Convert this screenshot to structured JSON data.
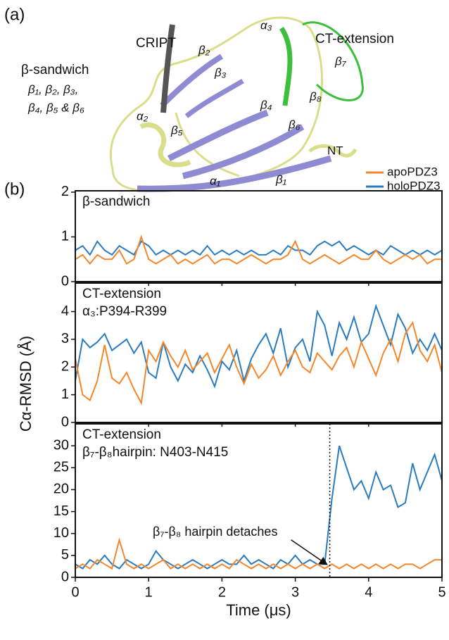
{
  "structure": {
    "panel_label": "(a)",
    "labels": [
      {
        "text": "CRIPT",
        "color": "#222222"
      },
      {
        "text": "β-sandwich",
        "color": "#8a84cc"
      },
      {
        "text": "β₁, β₂, β₃,",
        "color": "#222222"
      },
      {
        "text": "β₄, β₅ & β₆",
        "color": "#222222"
      },
      {
        "text": "α₂",
        "color": "#222222"
      },
      {
        "text": "β₂",
        "color": "#222222"
      },
      {
        "text": "β₃",
        "color": "#222222"
      },
      {
        "text": "α₃",
        "color": "#222222"
      },
      {
        "text": "CT-extension",
        "color": "#33b533"
      },
      {
        "text": "β₇",
        "color": "#222222"
      },
      {
        "text": "β₈",
        "color": "#222222"
      },
      {
        "text": "β₄",
        "color": "#222222"
      },
      {
        "text": "β₅",
        "color": "#222222"
      },
      {
        "text": "β₆",
        "color": "#222222"
      },
      {
        "text": "NT",
        "color": "#222222"
      },
      {
        "text": "α₁",
        "color": "#222222"
      },
      {
        "text": "β₁",
        "color": "#222222"
      }
    ]
  },
  "panel_b_label": "(b)",
  "chart_data": [
    {
      "type": "line",
      "annotations": [
        "β-sandwich"
      ],
      "xlim": [
        0,
        5
      ],
      "xticks": [
        0,
        1,
        2,
        3,
        4,
        5
      ],
      "ylim": [
        0,
        2.03
      ],
      "yticks": [
        0,
        1,
        2
      ],
      "x": [
        0,
        0.1,
        0.2,
        0.3,
        0.4,
        0.5,
        0.6,
        0.7,
        0.8,
        0.9,
        1,
        1.1,
        1.2,
        1.3,
        1.4,
        1.5,
        1.6,
        1.7,
        1.8,
        1.9,
        2,
        2.1,
        2.2,
        2.3,
        2.4,
        2.5,
        2.6,
        2.7,
        2.8,
        2.9,
        3,
        3.1,
        3.2,
        3.3,
        3.4,
        3.5,
        3.6,
        3.7,
        3.8,
        3.9,
        4,
        4.1,
        4.2,
        4.3,
        4.4,
        4.5,
        4.6,
        4.7,
        4.8,
        4.9,
        5
      ],
      "series": [
        {
          "name": "holoPDZ3",
          "color": "#2b7bbf",
          "values": [
            0.7,
            0.8,
            0.6,
            0.9,
            0.7,
            0.6,
            0.8,
            0.7,
            0.6,
            0.9,
            0.8,
            0.6,
            0.7,
            0.6,
            0.7,
            0.6,
            0.7,
            0.6,
            0.8,
            0.6,
            0.7,
            0.6,
            0.7,
            0.6,
            0.7,
            0.6,
            0.6,
            0.7,
            0.6,
            0.8,
            0.7,
            0.7,
            0.6,
            0.8,
            0.9,
            0.8,
            0.9,
            0.7,
            0.8,
            0.7,
            0.6,
            0.7,
            0.6,
            0.8,
            0.7,
            0.6,
            0.7,
            0.6,
            0.7,
            0.6,
            0.7
          ]
        },
        {
          "name": "apoPDZ3",
          "color": "#f5862a",
          "values": [
            0.5,
            0.6,
            0.4,
            0.6,
            0.5,
            0.5,
            0.7,
            0.4,
            0.5,
            1.0,
            0.5,
            0.4,
            0.5,
            0.6,
            0.4,
            0.5,
            0.4,
            0.5,
            0.6,
            0.4,
            0.5,
            0.5,
            0.4,
            0.5,
            0.6,
            0.5,
            0.4,
            0.5,
            0.5,
            0.6,
            0.9,
            0.5,
            0.4,
            0.5,
            0.6,
            0.5,
            0.4,
            0.5,
            0.6,
            0.5,
            0.5,
            0.7,
            0.5,
            0.4,
            0.5,
            0.6,
            0.5,
            0.6,
            0.4,
            0.5,
            0.5
          ]
        }
      ]
    },
    {
      "type": "line",
      "annotations": [
        "CT-extension",
        "α₃:P394-R399"
      ],
      "ylabel": "Cα-RMSD (Å)",
      "xlim": [
        0,
        5
      ],
      "xticks": [
        0,
        1,
        2,
        3,
        4,
        5
      ],
      "ylim": [
        0,
        5.03
      ],
      "yticks": [
        0,
        1,
        2,
        3,
        4
      ],
      "x": [
        0,
        0.1,
        0.2,
        0.3,
        0.4,
        0.5,
        0.6,
        0.7,
        0.8,
        0.9,
        1,
        1.1,
        1.2,
        1.3,
        1.4,
        1.5,
        1.6,
        1.7,
        1.8,
        1.9,
        2,
        2.1,
        2.2,
        2.3,
        2.4,
        2.5,
        2.6,
        2.7,
        2.8,
        2.9,
        3,
        3.1,
        3.2,
        3.3,
        3.4,
        3.5,
        3.6,
        3.7,
        3.8,
        3.9,
        4,
        4.1,
        4.2,
        4.3,
        4.4,
        4.5,
        4.6,
        4.7,
        4.8,
        4.9,
        5
      ],
      "series": [
        {
          "color": "#2b7bbf",
          "values": [
            1.5,
            3.0,
            2.7,
            2.9,
            3.2,
            2.6,
            2.8,
            3.0,
            2.5,
            2.9,
            1.8,
            1.6,
            2.9,
            2.0,
            1.5,
            2.1,
            1.8,
            2.4,
            1.9,
            1.3,
            2.2,
            1.9,
            2.6,
            1.5,
            2.3,
            2.8,
            3.2,
            2.5,
            3.4,
            2.0,
            2.7,
            3.0,
            2.2,
            4.0,
            3.5,
            2.4,
            3.6,
            3.0,
            3.8,
            2.9,
            3.2,
            4.2,
            3.5,
            2.8,
            3.9,
            3.4,
            2.5,
            3.0,
            2.6,
            3.2,
            2.6
          ]
        },
        {
          "color": "#f5862a",
          "values": [
            2.3,
            1.0,
            0.8,
            1.5,
            2.8,
            1.6,
            1.4,
            1.8,
            1.2,
            0.7,
            2.6,
            2.2,
            2.9,
            2.4,
            2.0,
            2.6,
            1.9,
            2.2,
            2.5,
            1.8,
            2.3,
            2.8,
            2.0,
            1.4,
            2.1,
            1.6,
            1.9,
            2.4,
            1.7,
            2.2,
            2.6,
            2.0,
            1.8,
            2.5,
            2.2,
            1.9,
            2.4,
            2.7,
            2.0,
            2.9,
            2.3,
            1.7,
            2.5,
            3.0,
            2.2,
            3.2,
            3.6,
            2.6,
            2.2,
            2.8,
            1.8
          ]
        }
      ]
    },
    {
      "type": "line",
      "annotations": [
        "CT-extension",
        "β₇-β₈hairpin: N403-N415",
        "β₇-β₈ hairpin detaches"
      ],
      "vline": 3.47,
      "xlabel": "Time (μs)",
      "xlim": [
        0,
        5
      ],
      "xticks": [
        0,
        1,
        2,
        3,
        4,
        5
      ],
      "ylim": [
        0,
        35
      ],
      "yticks": [
        0,
        5,
        10,
        15,
        20,
        25,
        30
      ],
      "x": [
        0,
        0.1,
        0.2,
        0.3,
        0.4,
        0.5,
        0.6,
        0.7,
        0.8,
        0.9,
        1,
        1.1,
        1.2,
        1.3,
        1.4,
        1.5,
        1.6,
        1.7,
        1.8,
        1.9,
        2,
        2.1,
        2.2,
        2.3,
        2.4,
        2.5,
        2.6,
        2.7,
        2.8,
        2.9,
        3,
        3.1,
        3.2,
        3.3,
        3.4,
        3.5,
        3.6,
        3.7,
        3.8,
        3.9,
        4,
        4.1,
        4.2,
        4.3,
        4.4,
        4.5,
        4.6,
        4.7,
        4.8,
        4.9,
        5
      ],
      "series": [
        {
          "color": "#2b7bbf",
          "values": [
            3,
            2,
            4,
            3,
            5,
            3,
            2,
            4,
            3,
            2,
            3,
            6,
            4,
            3,
            2,
            3,
            4,
            3,
            2,
            3,
            4,
            3,
            3,
            5,
            3,
            4,
            3,
            2,
            4,
            3,
            5,
            3,
            4,
            3,
            3,
            18,
            30,
            25,
            20,
            22,
            18,
            24,
            20,
            21,
            16,
            17,
            26,
            20,
            24,
            28,
            22
          ]
        },
        {
          "color": "#f5862a",
          "values": [
            2,
            3,
            2,
            4,
            3,
            2,
            8.5,
            3,
            2,
            3,
            2,
            3,
            4,
            2,
            3,
            2,
            3,
            2,
            3,
            2,
            3,
            2,
            4,
            3,
            2,
            3,
            2,
            3,
            2,
            3,
            2,
            3,
            2,
            3,
            2,
            3,
            2,
            3,
            2,
            3,
            2,
            3,
            2,
            3,
            2,
            3,
            3,
            2,
            3,
            4,
            4
          ]
        }
      ]
    }
  ]
}
